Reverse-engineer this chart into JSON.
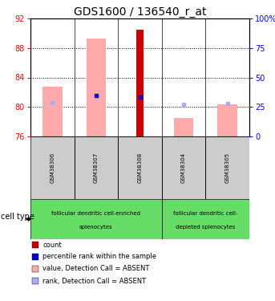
{
  "title": "GDS1600 / 136540_r_at",
  "samples": [
    "GSM38306",
    "GSM38307",
    "GSM38308",
    "GSM38304",
    "GSM38305"
  ],
  "ylim_left": [
    76,
    92
  ],
  "yticks_left": [
    76,
    80,
    84,
    88,
    92
  ],
  "yticks_right": [
    0,
    25,
    50,
    75,
    100
  ],
  "ytick_labels_right": [
    "0",
    "25",
    "50",
    "75",
    "100%"
  ],
  "bar_bottom": 76,
  "pink_bar_top": [
    82.7,
    89.3,
    76.0,
    78.5,
    80.3
  ],
  "red_bar_top": [
    76.0,
    76.0,
    90.5,
    76.0,
    76.0
  ],
  "blue_square_y": [
    80.8,
    81.5,
    81.3,
    80.8,
    81.0
  ],
  "light_blue_square_y": [
    80.55,
    81.2,
    81.1,
    80.4,
    80.5
  ],
  "has_red_bar": [
    false,
    false,
    true,
    false,
    false
  ],
  "has_blue_square": [
    false,
    true,
    true,
    false,
    false
  ],
  "has_light_blue": [
    true,
    false,
    false,
    true,
    true
  ],
  "group1_indices": [
    0,
    1,
    2
  ],
  "group2_indices": [
    3,
    4
  ],
  "group1_label_line1": "follicular dendritic cell-enriched",
  "group1_label_line2": "splenocytes",
  "group2_label_line1": "follicular dendritic cell-",
  "group2_label_line2": "depleted splenocytes",
  "cell_type_label": "cell type",
  "legend_items": [
    {
      "color": "#cc0000",
      "label": "count"
    },
    {
      "color": "#0000cc",
      "label": "percentile rank within the sample"
    },
    {
      "color": "#ffaaaa",
      "label": "value, Detection Call = ABSENT"
    },
    {
      "color": "#aaaaff",
      "label": "rank, Detection Call = ABSENT"
    }
  ],
  "group_bg_color": "#66dd66",
  "sample_bg_color": "#cccccc",
  "pink_bar_color": "#ffaaaa",
  "red_bar_color": "#cc0000",
  "blue_sq_color": "#0000cc",
  "light_blue_sq_color": "#aaaaff",
  "bar_width": 0.45,
  "red_bar_width": 0.15,
  "title_fontsize": 10,
  "tick_fontsize": 7,
  "sample_fontsize": 5,
  "group_fontsize": 5,
  "legend_fontsize": 6,
  "cell_type_fontsize": 7
}
